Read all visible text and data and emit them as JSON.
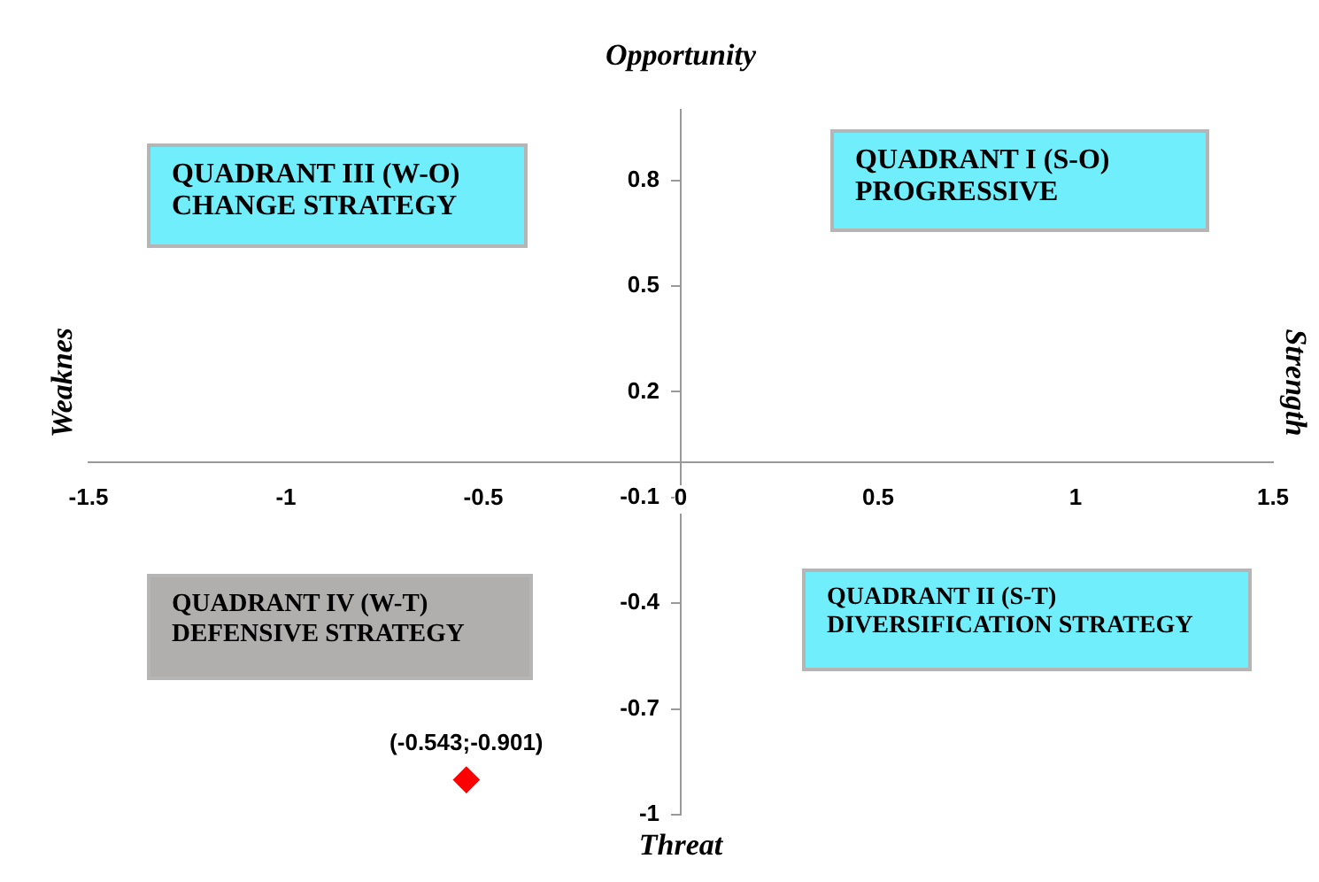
{
  "chart_data": {
    "type": "scatter",
    "title": "Opportunity",
    "xlabel": "Threat",
    "ylabel": "Weaknes",
    "y2label": "Strength",
    "annotations": [
      "QUADRANT III (W-O)\nCHANGE STRATEGY",
      "QUADRANT I (S-O)\nPROGRESSIVE",
      "QUADRANT IV (W-T)\nDEFENSIVE STRATEGY",
      "QUADRANT II (S-T)\nDIVERSIFICATION STRATEGY"
    ],
    "x": [
      -0.543
    ],
    "values": [
      -0.901
    ],
    "value_labels": [
      "(-0.543;-0.901)"
    ],
    "color": "#ff0000",
    "marker": "diamond",
    "xlim": [
      -1.5,
      1.5
    ],
    "ylim": [
      -1,
      1
    ],
    "xticks": [
      -1.5,
      -1,
      -0.5,
      0,
      0.5,
      1,
      1.5
    ],
    "yticks": [
      -1,
      -0.7,
      -0.4,
      -0.1,
      0.2,
      0.5,
      0.8
    ],
    "grid": false,
    "legend": false
  }
}
